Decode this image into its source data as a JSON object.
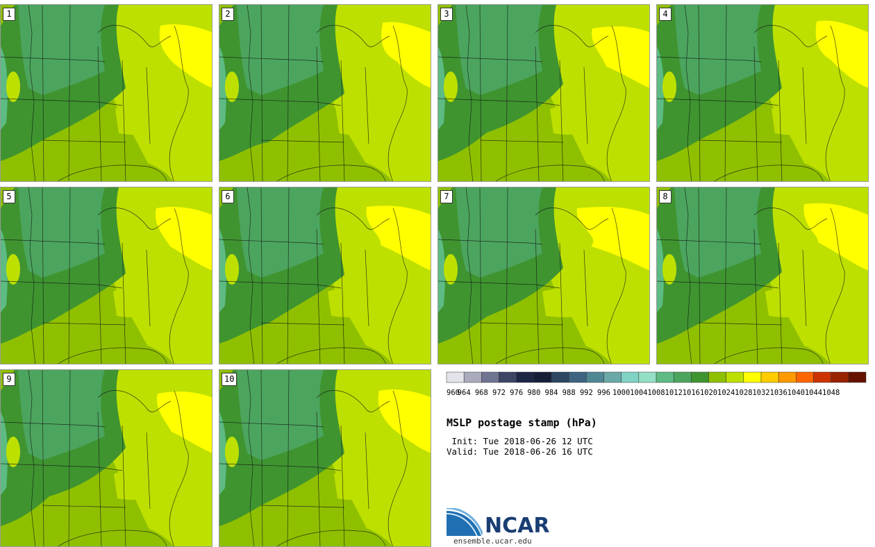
{
  "members": [
    "1",
    "2",
    "3",
    "4",
    "5",
    "6",
    "7",
    "8",
    "9",
    "10"
  ],
  "colorbar": {
    "ticks": [
      "960",
      "964",
      "968",
      "972",
      "976",
      "980",
      "984",
      "988",
      "992",
      "996",
      "1000",
      "1004",
      "1008",
      "1012",
      "1016",
      "1020",
      "1024",
      "1028",
      "1032",
      "1036",
      "1040",
      "1044",
      "1048"
    ],
    "colors": [
      "#e2e4ea",
      "#a9abbd",
      "#6f7490",
      "#3c4566",
      "#1d2645",
      "#152038",
      "#2f4663",
      "#3e6481",
      "#4f8794",
      "#6aa9a8",
      "#80d2c4",
      "#94e0c5",
      "#5dbb83",
      "#4ca55e",
      "#3f9430",
      "#8fc000",
      "#bee000",
      "#ffff00",
      "#ffcc00",
      "#ff9900",
      "#ff6600",
      "#cc3300",
      "#992200",
      "#661100"
    ]
  },
  "title": "MSLP postage stamp (hPa)",
  "init": " Init: Tue 2018-06-26 12 UTC",
  "valid": "Valid: Tue 2018-06-26 16 UTC",
  "logo": {
    "name": "NCAR",
    "url": "ensemble.ucar.edu"
  }
}
